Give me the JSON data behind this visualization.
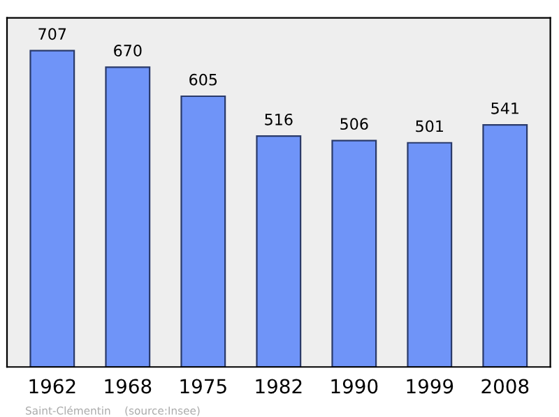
{
  "chart_data": {
    "type": "bar",
    "categories": [
      "1962",
      "1968",
      "1975",
      "1982",
      "1990",
      "1999",
      "2008"
    ],
    "values": [
      707,
      670,
      605,
      516,
      506,
      501,
      541
    ],
    "color": "#6f94f8",
    "ylim": [
      0,
      780
    ],
    "data_labels": true,
    "tick_labels": "x",
    "grid": false,
    "annotations": [
      "Saint-Clémentin    (source:Insee)"
    ]
  }
}
